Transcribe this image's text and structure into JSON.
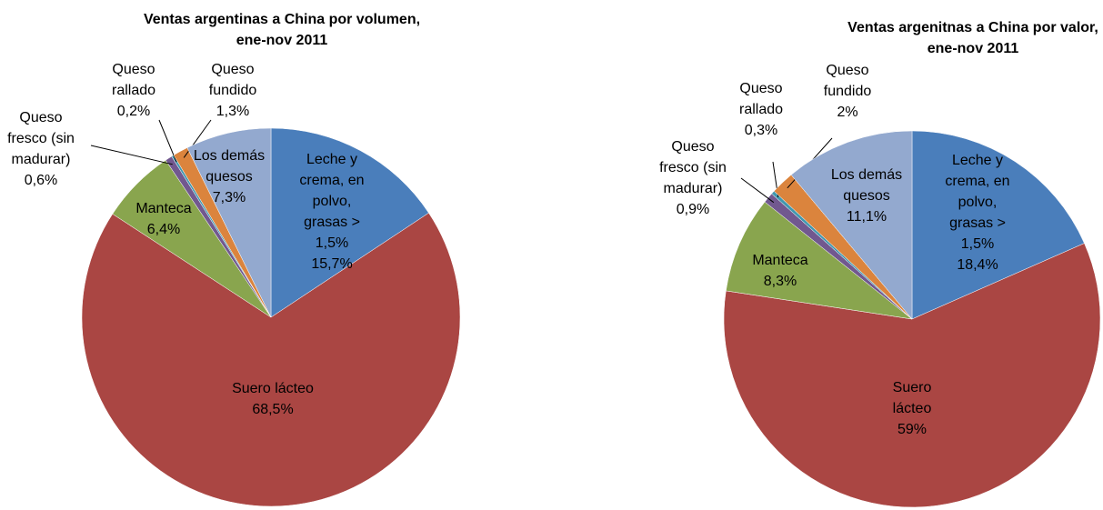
{
  "chart_data": [
    {
      "type": "pie",
      "title": "Ventas argentinas a China por volumen, ene-nov 2011",
      "categories": [
        "Leche y crema, en polvo, grasas > 1,5%",
        "Suero lácteo",
        "Manteca",
        "Queso fresco (sin madurar)",
        "Queso rallado",
        "Queso fundido",
        "Los demás quesos"
      ],
      "values": [
        15.7,
        68.5,
        6.4,
        0.6,
        0.2,
        1.3,
        7.3
      ],
      "value_labels": [
        "15,7%",
        "68,5%",
        "6,4%",
        "0,6%",
        "0,2%",
        "1,3%",
        "7,3%"
      ],
      "colors": [
        "#4a7ebb",
        "#aa4643",
        "#89a54e",
        "#71588f",
        "#4198af",
        "#db843d",
        "#93a9cf"
      ]
    },
    {
      "type": "pie",
      "title": "Ventas argenitnas a China por valor, ene-nov 2011",
      "categories": [
        "Leche y crema, en polvo, grasas > 1,5%",
        "Suero lácteo",
        "Manteca",
        "Queso fresco (sin madurar)",
        "Queso rallado",
        "Queso fundido",
        "Los demás quesos"
      ],
      "values": [
        18.4,
        59,
        8.3,
        0.9,
        0.3,
        2,
        11.1
      ],
      "value_labels": [
        "18,4%",
        "59%",
        "8,3%",
        "0,9%",
        "0,3%",
        "2%",
        "11,1%"
      ],
      "colors": [
        "#4a7ebb",
        "#aa4643",
        "#89a54e",
        "#71588f",
        "#4198af",
        "#db843d",
        "#93a9cf"
      ]
    }
  ]
}
